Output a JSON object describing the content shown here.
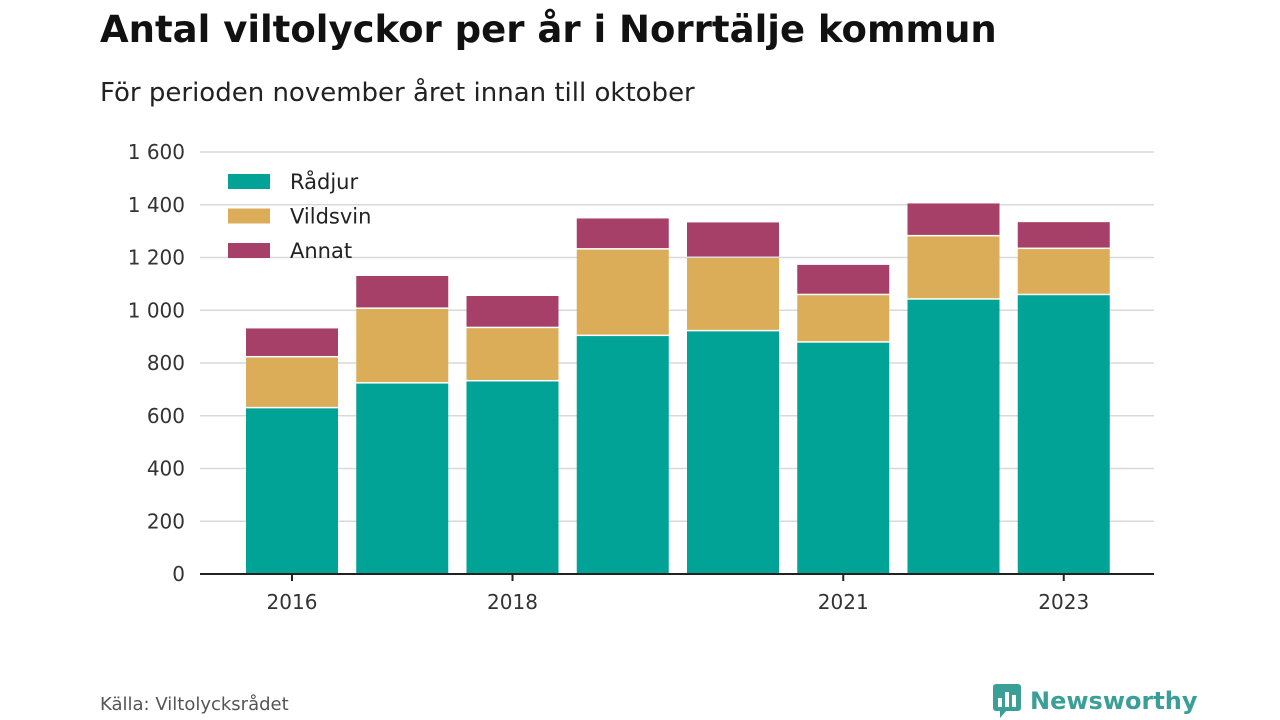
{
  "header": {
    "title": "Antal viltolyckor per år i Norrtälje kommun",
    "subtitle": "För perioden november året innan till oktober"
  },
  "footer": {
    "source": "Källa: Viltolycksrådet",
    "brand": "Newsworthy",
    "brand_icon": "bar-chart-bubble-icon",
    "brand_color": "#3a9f96"
  },
  "chart_data": {
    "type": "bar",
    "stacked": true,
    "categories": [
      "2016",
      "2017",
      "2018",
      "2019",
      "2020",
      "2021",
      "2022",
      "2023"
    ],
    "x_tick_labels": [
      "2016",
      "",
      "2018",
      "",
      "",
      "2021",
      "",
      "2023"
    ],
    "series": [
      {
        "name": "Rådjur",
        "color": "#00a396",
        "values": [
          628,
          722,
          730,
          902,
          920,
          877,
          1040,
          1057
        ]
      },
      {
        "name": "Vildsvin",
        "color": "#dbad58",
        "values": [
          193,
          283,
          202,
          328,
          278,
          180,
          240,
          175
        ]
      },
      {
        "name": "Annat",
        "color": "#a64068",
        "values": [
          110,
          125,
          122,
          118,
          135,
          115,
          125,
          102
        ]
      }
    ],
    "ylim": [
      0,
      1600
    ],
    "yticks": [
      0,
      200,
      400,
      600,
      800,
      1000,
      1200,
      1400,
      1600
    ],
    "ytick_labels": [
      "0",
      "200",
      "400",
      "600",
      "800",
      "1 000",
      "1 200",
      "1 400",
      "1 600"
    ],
    "grid": true,
    "legend_position": "top-left"
  }
}
